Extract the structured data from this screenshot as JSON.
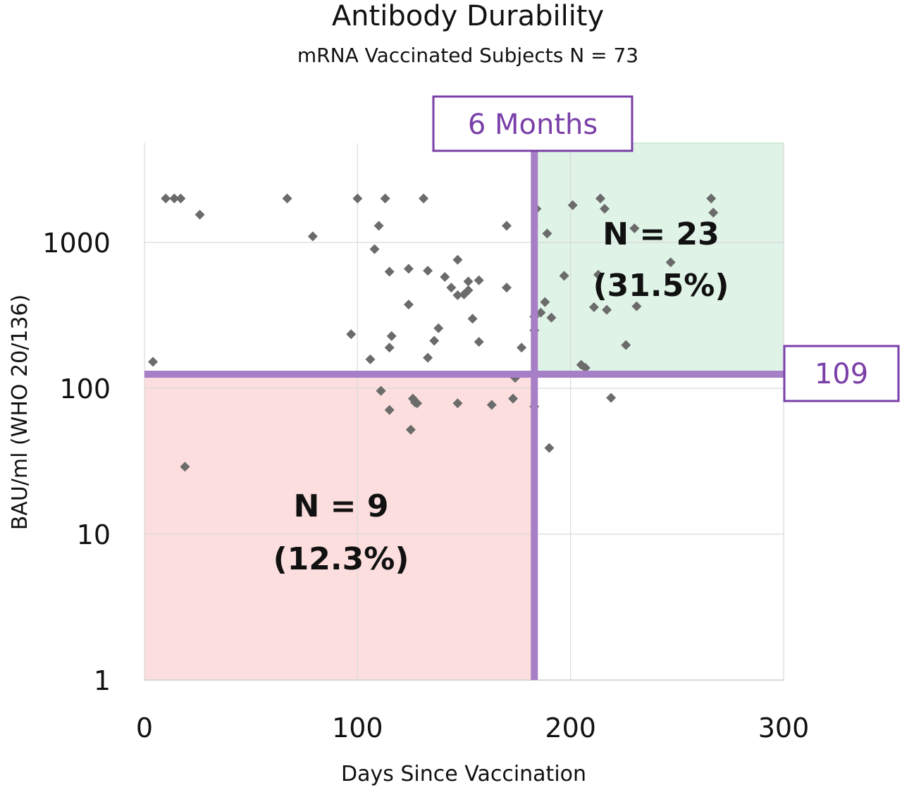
{
  "chart_data": {
    "type": "scatter",
    "title": "Antibody Durability",
    "subtitle": "mRNA Vaccinated Subjects N = 73",
    "xlabel": "Days Since Vaccination",
    "ylabel": "BAU/ml (WHO 20/136)",
    "xlim": [
      0,
      300
    ],
    "ylim": [
      1,
      5000
    ],
    "yscale": "log",
    "x_ticks": [
      "0",
      "100",
      "200",
      "300"
    ],
    "y_ticks": [
      "1",
      "10",
      "100",
      "1000"
    ],
    "grid": true,
    "threshold_lines": {
      "vertical": {
        "x": 183,
        "label": "6 Months"
      },
      "horizontal": {
        "y": 125,
        "label": "109"
      }
    },
    "regions": [
      {
        "name": "upper-right",
        "label": "N = 23",
        "percent": "(31.5%)",
        "color": "#dff3e6"
      },
      {
        "name": "lower-left",
        "label": "N = 9",
        "percent": "(12.3%)",
        "color": "#fbdedd"
      }
    ],
    "colors": {
      "points": "#6b6b6b",
      "threshold": "#a77fc6",
      "box_text": "#7a3fa8"
    },
    "points": [
      {
        "x": 4,
        "y": 152
      },
      {
        "x": 10,
        "y": 2000
      },
      {
        "x": 14,
        "y": 2000
      },
      {
        "x": 17,
        "y": 2000
      },
      {
        "x": 19,
        "y": 29
      },
      {
        "x": 26,
        "y": 1550
      },
      {
        "x": 67,
        "y": 2000
      },
      {
        "x": 79,
        "y": 1100
      },
      {
        "x": 97,
        "y": 235
      },
      {
        "x": 100,
        "y": 2000
      },
      {
        "x": 106,
        "y": 158
      },
      {
        "x": 108,
        "y": 900
      },
      {
        "x": 110,
        "y": 1300
      },
      {
        "x": 111,
        "y": 96
      },
      {
        "x": 113,
        "y": 2000
      },
      {
        "x": 115,
        "y": 630
      },
      {
        "x": 115,
        "y": 190
      },
      {
        "x": 115,
        "y": 71
      },
      {
        "x": 116,
        "y": 228
      },
      {
        "x": 124,
        "y": 660
      },
      {
        "x": 124,
        "y": 375
      },
      {
        "x": 125,
        "y": 52
      },
      {
        "x": 126,
        "y": 85
      },
      {
        "x": 127,
        "y": 80
      },
      {
        "x": 128,
        "y": 79
      },
      {
        "x": 131,
        "y": 2000
      },
      {
        "x": 133,
        "y": 640
      },
      {
        "x": 133,
        "y": 162
      },
      {
        "x": 136,
        "y": 212
      },
      {
        "x": 138,
        "y": 258
      },
      {
        "x": 141,
        "y": 580
      },
      {
        "x": 144,
        "y": 490
      },
      {
        "x": 147,
        "y": 760
      },
      {
        "x": 147,
        "y": 435
      },
      {
        "x": 147,
        "y": 79
      },
      {
        "x": 150,
        "y": 440
      },
      {
        "x": 152,
        "y": 540
      },
      {
        "x": 152,
        "y": 470
      },
      {
        "x": 154,
        "y": 300
      },
      {
        "x": 157,
        "y": 550
      },
      {
        "x": 157,
        "y": 208
      },
      {
        "x": 163,
        "y": 77
      },
      {
        "x": 170,
        "y": 1300
      },
      {
        "x": 170,
        "y": 490
      },
      {
        "x": 173,
        "y": 85
      },
      {
        "x": 174,
        "y": 118
      },
      {
        "x": 177,
        "y": 190
      },
      {
        "x": 183,
        "y": 250
      },
      {
        "x": 183,
        "y": 310
      },
      {
        "x": 183,
        "y": 75
      },
      {
        "x": 184,
        "y": 1700
      },
      {
        "x": 186,
        "y": 330
      },
      {
        "x": 188,
        "y": 390
      },
      {
        "x": 189,
        "y": 1150
      },
      {
        "x": 190,
        "y": 39
      },
      {
        "x": 191,
        "y": 305
      },
      {
        "x": 197,
        "y": 590
      },
      {
        "x": 201,
        "y": 1800
      },
      {
        "x": 205,
        "y": 145
      },
      {
        "x": 207,
        "y": 138
      },
      {
        "x": 211,
        "y": 360
      },
      {
        "x": 213,
        "y": 600
      },
      {
        "x": 214,
        "y": 2000
      },
      {
        "x": 216,
        "y": 1700
      },
      {
        "x": 217,
        "y": 345
      },
      {
        "x": 219,
        "y": 86
      },
      {
        "x": 226,
        "y": 198
      },
      {
        "x": 230,
        "y": 1250
      },
      {
        "x": 231,
        "y": 365
      },
      {
        "x": 247,
        "y": 730
      },
      {
        "x": 266,
        "y": 2000
      },
      {
        "x": 267,
        "y": 1600
      },
      {
        "x": 111,
        "y": 96
      }
    ]
  }
}
